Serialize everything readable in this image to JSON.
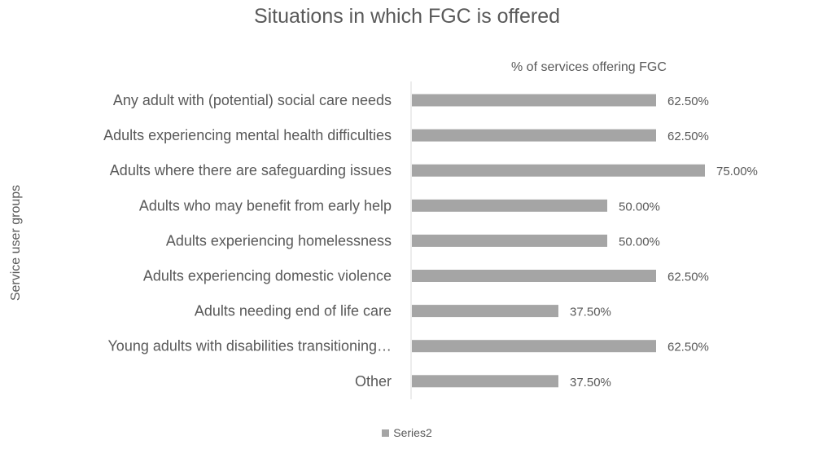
{
  "chart_data": {
    "type": "bar",
    "orientation": "horizontal",
    "title": "Situations in which FGC is offered",
    "xlabel": "% of services offering FGC",
    "ylabel": "Service user groups",
    "categories": [
      "Any adult with (potential) social care needs",
      "Adults experiencing mental health difficulties",
      "Adults where there are safeguarding issues",
      "Adults who may benefit from early help",
      "Adults experiencing homelessness",
      "Adults experiencing domestic violence",
      "Adults needing end of life care",
      "Young adults with disabilities transitioning…",
      "Other"
    ],
    "series": [
      {
        "name": "Series2",
        "values": [
          62.5,
          62.5,
          75.0,
          50.0,
          50.0,
          62.5,
          37.5,
          62.5,
          37.5
        ],
        "labels": [
          "62.50%",
          "62.50%",
          "75.00%",
          "50.00%",
          "50.00%",
          "62.50%",
          "37.50%",
          "62.50%",
          "37.50%"
        ],
        "color": "#a5a5a5"
      }
    ],
    "xlim": [
      0,
      100
    ],
    "grid": false,
    "legend_position": "bottom",
    "axis_line_color": "#d9d9d9",
    "text_color": "#595959"
  }
}
